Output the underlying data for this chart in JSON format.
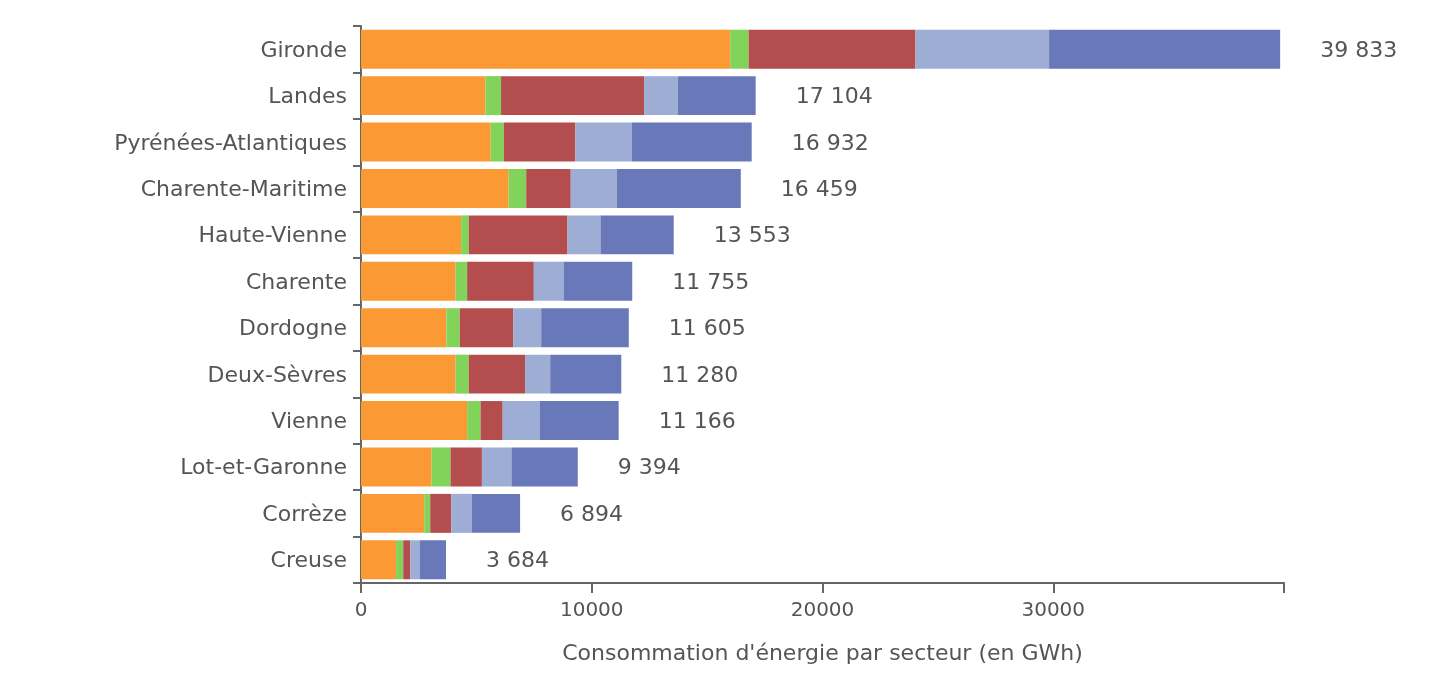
{
  "chart_data": {
    "type": "bar",
    "orientation": "horizontal",
    "stacked": true,
    "xlabel": "Consommation d'énergie par secteur (en GWh)",
    "categories": [
      "Gironde",
      "Landes",
      "Pyrénées-Atlantiques",
      "Charente-Maritime",
      "Haute-Vienne",
      "Charente",
      "Dordogne",
      "Deux-Sèvres",
      "Vienne",
      "Lot-et-Garonne",
      "Corrèze",
      "Creuse"
    ],
    "series": [
      {
        "color": "#fb9a35",
        "values": [
          16000,
          5390,
          5620,
          6400,
          4340,
          4100,
          3700,
          4100,
          4600,
          3060,
          2740,
          1520
        ]
      },
      {
        "color": "#82d35a",
        "values": [
          800,
          680,
          570,
          760,
          330,
          500,
          580,
          570,
          580,
          820,
          260,
          310
        ]
      },
      {
        "color": "#b44e4e",
        "values": [
          7230,
          6200,
          3100,
          1930,
          4280,
          2890,
          2320,
          2440,
          960,
          1360,
          910,
          310
        ]
      },
      {
        "color": "#9eadd4",
        "values": [
          5790,
          1460,
          2450,
          2000,
          1430,
          1290,
          1210,
          1090,
          1600,
          1280,
          890,
          400
        ]
      },
      {
        "color": "#6878b8",
        "values": [
          10013,
          3374,
          5192,
          5369,
          3173,
          2975,
          3795,
          3080,
          3426,
          2874,
          2094,
          1144
        ]
      }
    ],
    "totals": [
      "39 833",
      "17 104",
      "16 932",
      "16 459",
      "13 553",
      "11 755",
      "11 605",
      "11 280",
      "11 166",
      "9 394",
      "6 894",
      "3 684"
    ],
    "xlim": [
      0,
      40000
    ],
    "xticks": [
      0,
      10000,
      20000,
      30000,
      {
        "value": 40000,
        "label": null
      }
    ],
    "grid": false
  }
}
